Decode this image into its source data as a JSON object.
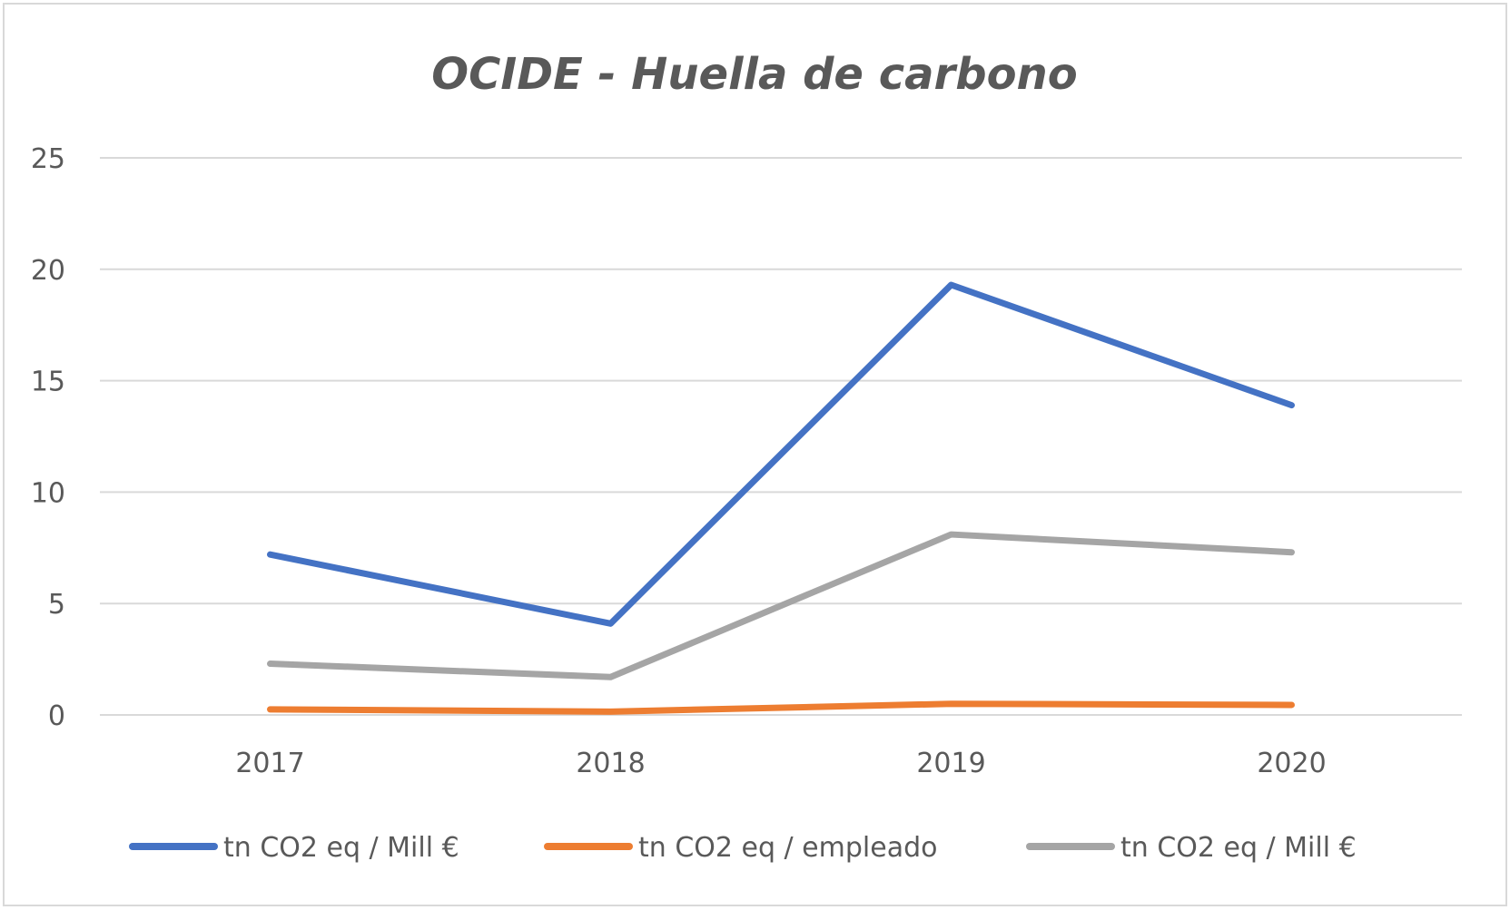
{
  "chart_data": {
    "type": "line",
    "title": "OCIDE - Huella de carbono",
    "xlabel": "",
    "ylabel": "",
    "categories": [
      "2017",
      "2018",
      "2019",
      "2020"
    ],
    "ylim": [
      0,
      25
    ],
    "yticks": [
      0,
      5,
      10,
      15,
      20,
      25
    ],
    "grid": true,
    "legend_position": "bottom",
    "series": [
      {
        "name": "tn CO2 eq / Mill €",
        "color": "#4472C4",
        "values": [
          7.2,
          4.1,
          19.3,
          13.9
        ]
      },
      {
        "name": "tn CO2 eq / empleado",
        "color": "#ED7D31",
        "values": [
          0.25,
          0.15,
          0.5,
          0.45
        ]
      },
      {
        "name": "tn CO2 eq / Mill €",
        "color": "#A5A5A5",
        "values": [
          2.3,
          1.7,
          8.1,
          7.3
        ]
      }
    ]
  }
}
